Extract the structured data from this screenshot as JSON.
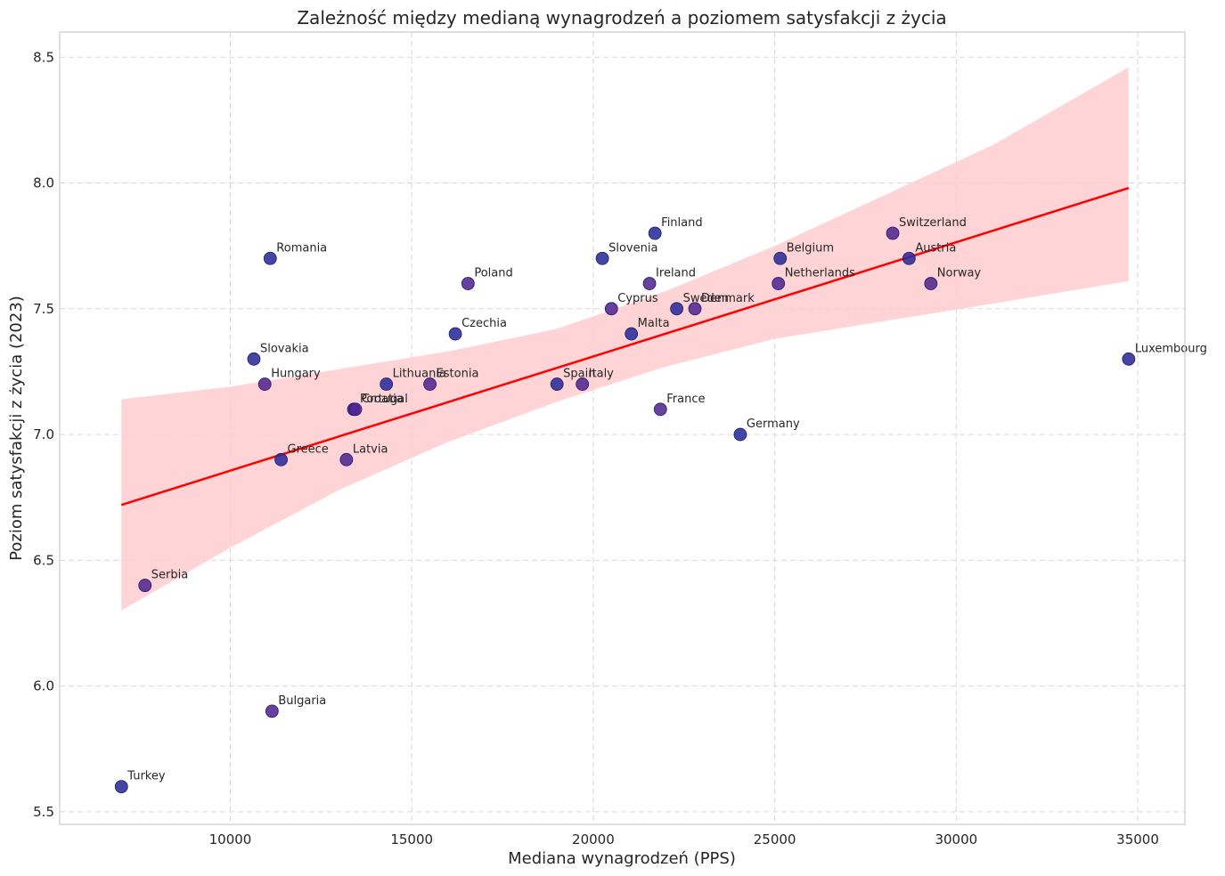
{
  "chart_data": {
    "type": "scatter",
    "title": "Zależność między medianą wynagrodzeń a poziomem satysfakcji z życia",
    "xlabel": "Mediana wynagrodzeń (PPS)",
    "ylabel": "Poziom satysfakcji z życia (2023)",
    "xlim": [
      5300,
      36300
    ],
    "ylim": [
      5.45,
      8.6
    ],
    "x_ticks": [
      10000,
      15000,
      20000,
      25000,
      30000,
      35000
    ],
    "y_ticks": [
      5.5,
      6.0,
      6.5,
      7.0,
      7.5,
      8.0,
      8.5
    ],
    "grid": true,
    "points": [
      {
        "label": "Turkey",
        "x": 7000,
        "y": 5.6
      },
      {
        "label": "Serbia",
        "x": 7650,
        "y": 6.4
      },
      {
        "label": "Slovakia",
        "x": 10650,
        "y": 7.3
      },
      {
        "label": "Hungary",
        "x": 10950,
        "y": 7.2
      },
      {
        "label": "Romania",
        "x": 11100,
        "y": 7.7
      },
      {
        "label": "Bulgaria",
        "x": 11150,
        "y": 5.9
      },
      {
        "label": "Greece",
        "x": 11400,
        "y": 6.9
      },
      {
        "label": "Latvia",
        "x": 13200,
        "y": 6.9
      },
      {
        "label": "Portugal",
        "x": 13400,
        "y": 7.1
      },
      {
        "label": "Croatia",
        "x": 13450,
        "y": 7.1
      },
      {
        "label": "Lithuania",
        "x": 14300,
        "y": 7.2
      },
      {
        "label": "Estonia",
        "x": 15500,
        "y": 7.2
      },
      {
        "label": "Czechia",
        "x": 16200,
        "y": 7.4
      },
      {
        "label": "Poland",
        "x": 16550,
        "y": 7.6
      },
      {
        "label": "Spain",
        "x": 19000,
        "y": 7.2
      },
      {
        "label": "Italy",
        "x": 19700,
        "y": 7.2
      },
      {
        "label": "Slovenia",
        "x": 20250,
        "y": 7.7
      },
      {
        "label": "Cyprus",
        "x": 20500,
        "y": 7.5
      },
      {
        "label": "Malta",
        "x": 21050,
        "y": 7.4
      },
      {
        "label": "Ireland",
        "x": 21550,
        "y": 7.6
      },
      {
        "label": "Finland",
        "x": 21700,
        "y": 7.8
      },
      {
        "label": "France",
        "x": 21850,
        "y": 7.1
      },
      {
        "label": "Sweden",
        "x": 22300,
        "y": 7.5
      },
      {
        "label": "Denmark",
        "x": 22800,
        "y": 7.5
      },
      {
        "label": "Germany",
        "x": 24050,
        "y": 7.0
      },
      {
        "label": "Netherlands",
        "x": 25100,
        "y": 7.6
      },
      {
        "label": "Belgium",
        "x": 25150,
        "y": 7.7
      },
      {
        "label": "Switzerland",
        "x": 28250,
        "y": 7.8
      },
      {
        "label": "Austria",
        "x": 28700,
        "y": 7.7
      },
      {
        "label": "Norway",
        "x": 29300,
        "y": 7.6
      },
      {
        "label": "Luxembourg",
        "x": 34750,
        "y": 7.3
      }
    ],
    "regression": {
      "x": [
        7000,
        34750
      ],
      "y": [
        6.72,
        7.98
      ],
      "ci": [
        {
          "x": 7000,
          "lo": 6.3,
          "hi": 7.14
        },
        {
          "x": 10000,
          "lo": 6.55,
          "hi": 7.19
        },
        {
          "x": 13000,
          "lo": 6.78,
          "hi": 7.26
        },
        {
          "x": 16000,
          "lo": 6.97,
          "hi": 7.33
        },
        {
          "x": 19000,
          "lo": 7.13,
          "hi": 7.42
        },
        {
          "x": 22000,
          "lo": 7.27,
          "hi": 7.57
        },
        {
          "x": 25000,
          "lo": 7.38,
          "hi": 7.75
        },
        {
          "x": 28000,
          "lo": 7.45,
          "hi": 7.95
        },
        {
          "x": 31000,
          "lo": 7.52,
          "hi": 8.15
        },
        {
          "x": 34750,
          "lo": 7.61,
          "hi": 8.46
        }
      ]
    },
    "colors": {
      "point": "#2b2b99",
      "point_alt": "#54268f",
      "line": "#ff0000",
      "band": "#ffcccf",
      "grid": "#d9d9d9",
      "frame": "#cccccc"
    }
  }
}
